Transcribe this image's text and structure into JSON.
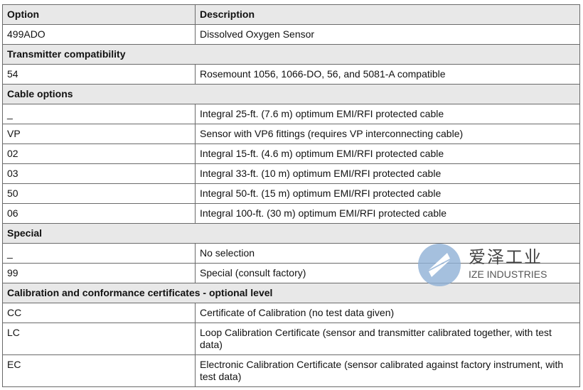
{
  "table": {
    "header": [
      "Option",
      "Description"
    ],
    "rows": [
      {
        "cells": [
          "499ADO",
          "Dissolved Oxygen Sensor"
        ]
      },
      {
        "section": "Transmitter compatibility"
      },
      {
        "cells": [
          "54",
          "Rosemount 1056, 1066-DO, 56, and 5081-A compatible"
        ]
      },
      {
        "section": "Cable options"
      },
      {
        "cells": [
          "_",
          "Integral 25-ft. (7.6 m) optimum EMI/RFI protected cable"
        ]
      },
      {
        "cells": [
          "VP",
          "Sensor with VP6 fittings (requires VP interconnecting cable)"
        ]
      },
      {
        "cells": [
          "02",
          "Integral 15-ft. (4.6 m) optimum EMI/RFI protected cable"
        ]
      },
      {
        "cells": [
          "03",
          "Integral 33-ft. (10 m) optimum EMI/RFI protected cable"
        ]
      },
      {
        "cells": [
          "50",
          "Integral 50-ft. (15 m) optimum EMI/RFI protected cable"
        ]
      },
      {
        "cells": [
          "06",
          "Integral 100-ft. (30 m) optimum EMI/RFI protected cable"
        ]
      },
      {
        "section": "Special"
      },
      {
        "cells": [
          "_",
          "No selection"
        ]
      },
      {
        "cells": [
          "99",
          "Special (consult factory)"
        ]
      },
      {
        "section": "Calibration and conformance certificates - optional level"
      },
      {
        "cells": [
          "CC",
          "Certificate of Calibration (no test data given)"
        ]
      },
      {
        "cells": [
          "LC",
          "Loop Calibration Certificate (sensor and transmitter calibrated together, with test data)"
        ]
      },
      {
        "cells": [
          "EC",
          "Electronic Calibration Certificate (sensor calibrated against factory instrument, with test data)"
        ]
      }
    ]
  },
  "watermark": {
    "brand": "爱泽工业",
    "name": "IZE INDUSTRIES"
  }
}
